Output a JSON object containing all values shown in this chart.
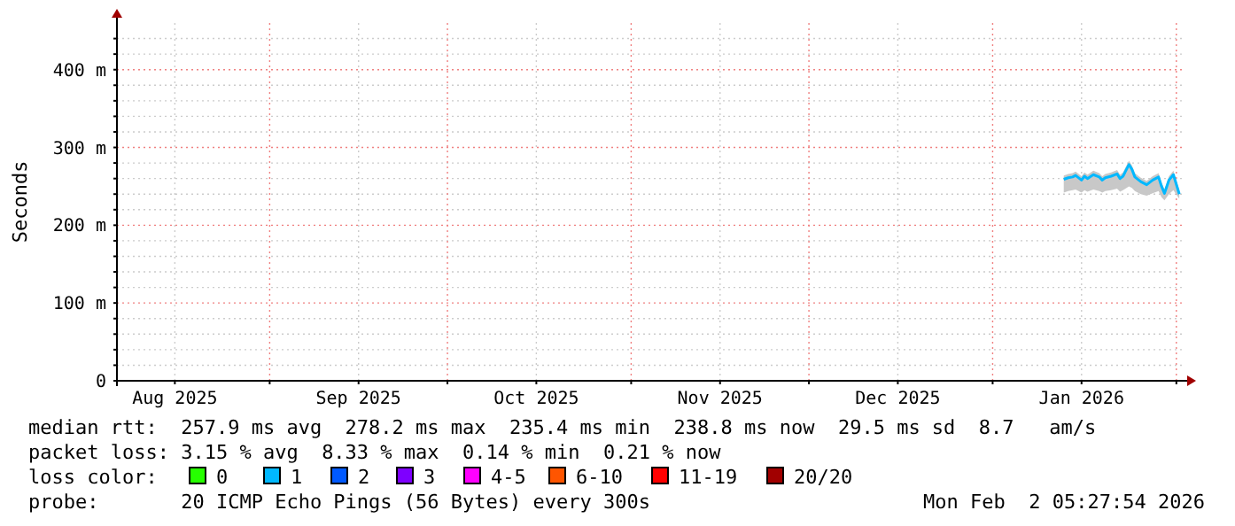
{
  "chart_data": {
    "type": "line",
    "ylabel": "Seconds",
    "xlim": [
      "2025-08-06T05:27",
      "2026-02-02T05:27"
    ],
    "xticks": [
      {
        "value": "2025-08-16",
        "label": "Aug 2025"
      },
      {
        "value": "2025-09-01",
        "label": null
      },
      {
        "value": "2025-09-16",
        "label": "Sep 2025"
      },
      {
        "value": "2025-10-01",
        "label": null
      },
      {
        "value": "2025-10-16",
        "label": "Oct 2025"
      },
      {
        "value": "2025-11-01",
        "label": null
      },
      {
        "value": "2025-11-16",
        "label": "Nov 2025"
      },
      {
        "value": "2025-12-01",
        "label": null
      },
      {
        "value": "2025-12-16",
        "label": "Dec 2025"
      },
      {
        "value": "2026-01-01",
        "label": null
      },
      {
        "value": "2026-01-16",
        "label": "Jan 2026"
      },
      {
        "value": "2026-02-01",
        "label": null
      }
    ],
    "ylim": [
      0,
      460
    ],
    "yticks": [
      {
        "value": 0,
        "label": "0"
      },
      {
        "value": 20,
        "label": null
      },
      {
        "value": 40,
        "label": null
      },
      {
        "value": 60,
        "label": null
      },
      {
        "value": 80,
        "label": null
      },
      {
        "value": 100,
        "label": "100 m"
      },
      {
        "value": 120,
        "label": null
      },
      {
        "value": 140,
        "label": null
      },
      {
        "value": 160,
        "label": null
      },
      {
        "value": 180,
        "label": null
      },
      {
        "value": 200,
        "label": "200 m"
      },
      {
        "value": 220,
        "label": null
      },
      {
        "value": 240,
        "label": null
      },
      {
        "value": 260,
        "label": null
      },
      {
        "value": 280,
        "label": null
      },
      {
        "value": 300,
        "label": "300 m"
      },
      {
        "value": 320,
        "label": null
      },
      {
        "value": 340,
        "label": null
      },
      {
        "value": 360,
        "label": null
      },
      {
        "value": 380,
        "label": null
      },
      {
        "value": 400,
        "label": "400 m"
      },
      {
        "value": 420,
        "label": null
      },
      {
        "value": 440,
        "label": null
      }
    ],
    "grid": true,
    "marker": "none",
    "line_style": "solid",
    "x": [
      "2026-01-13",
      "2026-01-13T18:00",
      "2026-01-14T12:00",
      "2026-01-15",
      "2026-01-16",
      "2026-01-16T12:00",
      "2026-01-17",
      "2026-01-18",
      "2026-01-19",
      "2026-01-19T12:00",
      "2026-01-20",
      "2026-01-21",
      "2026-01-22",
      "2026-01-22T12:00",
      "2026-01-23",
      "2026-01-24",
      "2026-01-24T12:00",
      "2026-01-25",
      "2026-01-26",
      "2026-01-27",
      "2026-01-28",
      "2026-01-29",
      "2026-01-29T12:00",
      "2026-01-30",
      "2026-01-30T18:00",
      "2026-01-31T12:00",
      "2026-02-01T12:00"
    ],
    "series": [
      {
        "color": "#00b8ff",
        "values": [
          259,
          261,
          262,
          264,
          258,
          263,
          260,
          265,
          262,
          258,
          261,
          263,
          266,
          260,
          263,
          278,
          272,
          262,
          256,
          252,
          258,
          262,
          250,
          241,
          258,
          265,
          240
        ],
        "lower": [
          242,
          244,
          245,
          246,
          242,
          245,
          243,
          246,
          244,
          242,
          244,
          245,
          247,
          243,
          245,
          250,
          248,
          244,
          240,
          238,
          241,
          244,
          236,
          232,
          240,
          245,
          234
        ],
        "upper": [
          264,
          266,
          267,
          269,
          263,
          268,
          265,
          270,
          267,
          263,
          266,
          268,
          271,
          265,
          268,
          283,
          277,
          267,
          261,
          257,
          263,
          267,
          255,
          246,
          263,
          270,
          245
        ]
      }
    ],
    "annotations": [
      "median rtt:  257.9 ms avg  278.2 ms max  235.4 ms min  238.8 ms now  29.5 ms sd  8.7   am/s",
      "packet loss: 3.15 % avg  8.33 % max  0.14 % min  0.21 % now",
      "loss color:",
      "0",
      "1",
      "2",
      "3",
      "4-5",
      "6-10",
      "11-19",
      "20/20",
      "probe:       20 ICMP Echo Pings (56 Bytes) every 300s",
      "Mon Feb  2 05:27:54 2026"
    ]
  }
}
